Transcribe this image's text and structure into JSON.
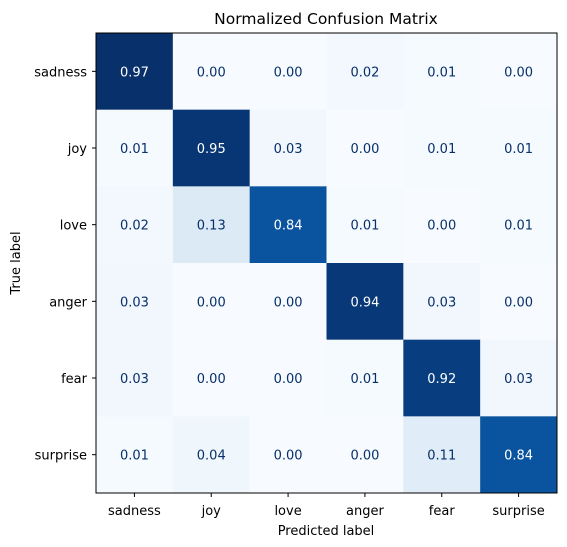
{
  "chart_data": {
    "type": "heatmap",
    "title": "Normalized Confusion Matrix",
    "xlabel": "Predicted label",
    "ylabel": "True label",
    "x_categories": [
      "sadness",
      "joy",
      "love",
      "anger",
      "fear",
      "surprise"
    ],
    "y_categories": [
      "sadness",
      "joy",
      "love",
      "anger",
      "fear",
      "surprise"
    ],
    "values": [
      [
        0.97,
        0.0,
        0.0,
        0.02,
        0.01,
        0.0
      ],
      [
        0.01,
        0.95,
        0.03,
        0.0,
        0.01,
        0.01
      ],
      [
        0.02,
        0.13,
        0.84,
        0.01,
        0.0,
        0.01
      ],
      [
        0.03,
        0.0,
        0.0,
        0.94,
        0.03,
        0.0
      ],
      [
        0.03,
        0.0,
        0.0,
        0.01,
        0.92,
        0.03
      ],
      [
        0.01,
        0.04,
        0.0,
        0.0,
        0.11,
        0.84
      ]
    ],
    "value_format": "0.00",
    "colormap": "Blues",
    "color_low": "#f7fbff",
    "color_high": "#08306b",
    "text_dark_color": "#08306b",
    "text_light_color": "#ffffff",
    "colorbar": false,
    "grid": false
  }
}
